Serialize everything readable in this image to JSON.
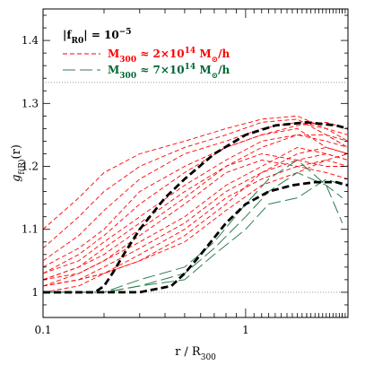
{
  "chart_data": {
    "type": "line",
    "title": "",
    "xlabel": "r / R",
    "xlabel_sub": "300",
    "ylabel": "g",
    "ylabel_sub": "f(R)",
    "ylabel_tail": "(r)",
    "x_scale": "log",
    "xlim": [
      0.1,
      3.2
    ],
    "ylim": [
      0.96,
      1.45
    ],
    "x_ticks": [
      {
        "value": 0.1,
        "label": "0.1"
      },
      {
        "value": 1,
        "label": "1"
      }
    ],
    "y_ticks": [
      {
        "value": 1.0,
        "label": "1"
      },
      {
        "value": 1.1,
        "label": "1.1"
      },
      {
        "value": 1.2,
        "label": "1.2"
      },
      {
        "value": 1.3,
        "label": "1.3"
      },
      {
        "value": 1.4,
        "label": "1.4"
      }
    ],
    "reference_lines": [
      1.0,
      1.3333
    ],
    "legend": {
      "placement": "top-left",
      "header_prefix": "|f",
      "header_sub": "R0",
      "header_suffix": "| = 10",
      "header_exp": "−5",
      "entries": [
        {
          "prefix": "M",
          "sub": "300",
          "text": " ≈ 2×10",
          "exp": "14",
          "unit": " M",
          "sun": "⊙",
          "tail": "/h",
          "color": "#ff0000"
        },
        {
          "prefix": "M",
          "sub": "300",
          "text": " ≈ 7×10",
          "exp": "14",
          "unit": " M",
          "sun": "⊙",
          "tail": "/h",
          "color": "#006633"
        }
      ]
    },
    "colors": {
      "red": "#ff0000",
      "green": "#2e7d50",
      "black": "#000000",
      "ref": "#888888"
    },
    "series": [
      {
        "group": "red",
        "x": [
          0.1,
          0.15,
          0.2,
          0.3,
          0.5,
          0.8,
          1.2,
          1.8,
          2.5,
          3.2
        ],
        "y": [
          1.1,
          1.15,
          1.19,
          1.22,
          1.24,
          1.26,
          1.275,
          1.28,
          1.26,
          1.24
        ]
      },
      {
        "group": "red",
        "x": [
          0.1,
          0.15,
          0.2,
          0.3,
          0.5,
          0.8,
          1.2,
          1.8,
          2.5,
          3.2
        ],
        "y": [
          1.07,
          1.12,
          1.16,
          1.2,
          1.23,
          1.25,
          1.27,
          1.275,
          1.25,
          1.23
        ]
      },
      {
        "group": "red",
        "x": [
          0.1,
          0.15,
          0.2,
          0.3,
          0.5,
          0.8,
          1.2,
          1.8,
          2.5,
          3.2
        ],
        "y": [
          1.05,
          1.09,
          1.13,
          1.18,
          1.22,
          1.24,
          1.26,
          1.27,
          1.26,
          1.25
        ]
      },
      {
        "group": "red",
        "x": [
          0.1,
          0.15,
          0.2,
          0.3,
          0.5,
          0.8,
          1.2,
          1.8,
          2.5,
          3.2
        ],
        "y": [
          1.04,
          1.07,
          1.1,
          1.16,
          1.2,
          1.23,
          1.25,
          1.265,
          1.27,
          1.26
        ]
      },
      {
        "group": "red",
        "x": [
          0.1,
          0.15,
          0.2,
          0.3,
          0.5,
          0.8,
          1.2,
          1.8,
          2.5,
          3.2
        ],
        "y": [
          1.03,
          1.06,
          1.09,
          1.14,
          1.19,
          1.23,
          1.25,
          1.26,
          1.23,
          1.22
        ]
      },
      {
        "group": "red",
        "x": [
          0.1,
          0.15,
          0.2,
          0.3,
          0.5,
          0.8,
          1.2,
          1.8,
          2.5,
          3.2
        ],
        "y": [
          1.03,
          1.05,
          1.08,
          1.12,
          1.17,
          1.21,
          1.24,
          1.25,
          1.24,
          1.23
        ]
      },
      {
        "group": "red",
        "x": [
          0.1,
          0.15,
          0.2,
          0.3,
          0.5,
          0.8,
          1.2,
          1.8,
          2.5,
          3.2
        ],
        "y": [
          1.02,
          1.04,
          1.07,
          1.11,
          1.16,
          1.2,
          1.23,
          1.25,
          1.25,
          1.24
        ]
      },
      {
        "group": "red",
        "x": [
          0.1,
          0.15,
          0.2,
          0.3,
          0.5,
          0.8,
          1.2,
          1.8,
          2.5,
          3.2
        ],
        "y": [
          1.02,
          1.04,
          1.06,
          1.1,
          1.15,
          1.2,
          1.22,
          1.21,
          1.22,
          1.21
        ]
      },
      {
        "group": "red",
        "x": [
          0.1,
          0.15,
          0.2,
          0.3,
          0.5,
          0.8,
          1.2,
          1.8,
          2.5,
          3.2
        ],
        "y": [
          1.02,
          1.03,
          1.05,
          1.09,
          1.14,
          1.19,
          1.21,
          1.2,
          1.19,
          1.18
        ]
      },
      {
        "group": "red",
        "x": [
          0.1,
          0.15,
          0.2,
          0.3,
          0.5,
          0.8,
          1.2,
          1.8,
          2.5,
          3.2
        ],
        "y": [
          1.01,
          1.03,
          1.05,
          1.08,
          1.12,
          1.17,
          1.2,
          1.23,
          1.22,
          1.21
        ]
      },
      {
        "group": "red",
        "x": [
          0.1,
          0.15,
          0.2,
          0.3,
          0.5,
          0.8,
          1.2,
          1.8,
          2.5,
          3.2
        ],
        "y": [
          1.01,
          1.02,
          1.04,
          1.07,
          1.11,
          1.16,
          1.19,
          1.21,
          1.2,
          1.2
        ]
      },
      {
        "group": "red",
        "x": [
          0.1,
          0.15,
          0.2,
          0.3,
          0.5,
          0.8,
          1.2,
          1.8,
          2.5,
          3.2
        ],
        "y": [
          1.01,
          1.02,
          1.03,
          1.06,
          1.1,
          1.15,
          1.18,
          1.2,
          1.21,
          1.22
        ]
      },
      {
        "group": "red",
        "x": [
          0.1,
          0.15,
          0.2,
          0.3,
          0.5,
          0.8,
          1.2,
          1.8,
          2.5,
          3.2
        ],
        "y": [
          1.01,
          1.02,
          1.03,
          1.05,
          1.09,
          1.14,
          1.19,
          1.22,
          1.23,
          1.22
        ]
      },
      {
        "group": "red",
        "x": [
          0.1,
          0.15,
          0.2,
          0.3,
          0.5,
          0.8,
          1.2,
          1.8,
          2.5,
          3.2
        ],
        "y": [
          1.0,
          1.01,
          1.03,
          1.05,
          1.08,
          1.13,
          1.17,
          1.19,
          1.21,
          1.2
        ]
      },
      {
        "group": "green",
        "x": [
          0.1,
          0.2,
          0.3,
          0.5,
          0.7,
          1.0,
          1.3,
          1.8,
          2.5,
          3.0
        ],
        "y": [
          1.0,
          1.0,
          1.01,
          1.03,
          1.07,
          1.12,
          1.16,
          1.19,
          1.17,
          1.15
        ]
      },
      {
        "group": "green",
        "x": [
          0.1,
          0.2,
          0.3,
          0.5,
          0.7,
          1.0,
          1.3,
          1.8,
          2.5,
          3.0
        ],
        "y": [
          1.0,
          1.0,
          1.02,
          1.04,
          1.08,
          1.14,
          1.18,
          1.21,
          1.17,
          1.11
        ]
      },
      {
        "group": "green",
        "x": [
          0.1,
          0.2,
          0.3,
          0.5,
          0.7,
          1.0,
          1.3,
          1.8,
          2.5,
          3.0
        ],
        "y": [
          1.0,
          1.0,
          1.01,
          1.02,
          1.06,
          1.1,
          1.14,
          1.15,
          1.18,
          1.17
        ]
      },
      {
        "group": "black",
        "x": [
          0.1,
          0.18,
          0.2,
          0.22,
          0.25,
          0.3,
          0.4,
          0.5,
          0.7,
          1.0,
          1.4,
          2.0,
          2.8,
          3.2
        ],
        "y": [
          1.0,
          1.0,
          1.01,
          1.03,
          1.06,
          1.1,
          1.15,
          1.18,
          1.22,
          1.25,
          1.265,
          1.27,
          1.265,
          1.26
        ]
      },
      {
        "group": "black",
        "x": [
          0.1,
          0.3,
          0.43,
          0.5,
          0.6,
          0.8,
          1.0,
          1.3,
          1.7,
          2.2,
          2.8,
          3.2
        ],
        "y": [
          1.0,
          1.0,
          1.01,
          1.03,
          1.06,
          1.11,
          1.14,
          1.16,
          1.17,
          1.175,
          1.175,
          1.17
        ]
      }
    ]
  }
}
